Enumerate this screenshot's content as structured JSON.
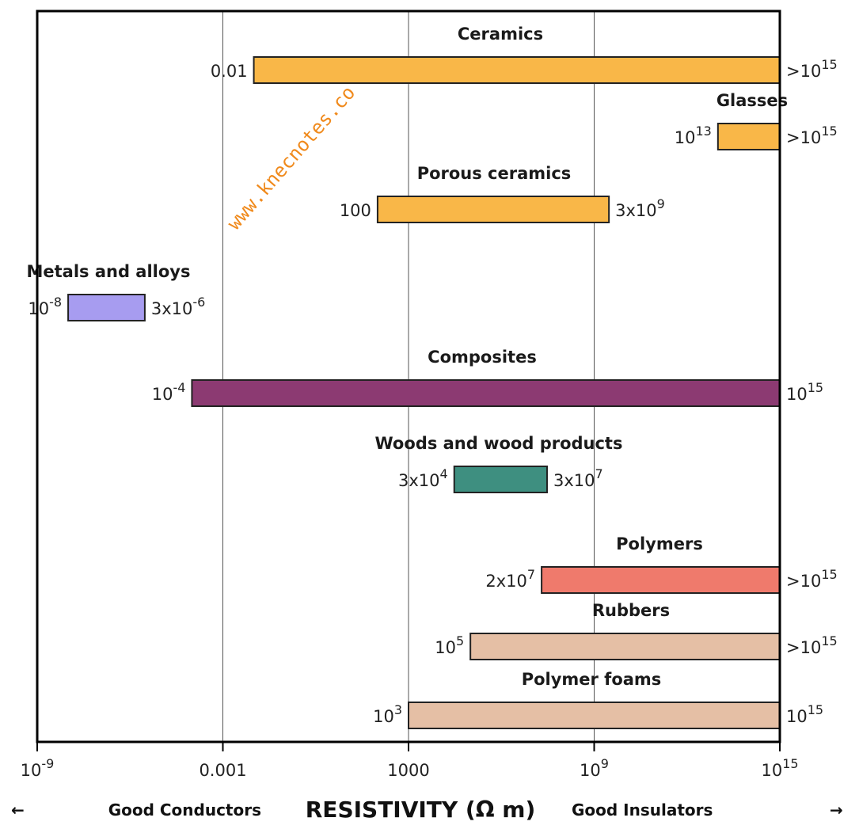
{
  "chart_data": {
    "type": "bar",
    "orientation": "horizontal-range",
    "x_scale": "log",
    "x_unit": "Ω m",
    "xlim": [
      1e-09,
      1000000000000000.0
    ],
    "xticks": [
      {
        "value": 1e-09,
        "base": "10",
        "exp": "-9"
      },
      {
        "value": 0.001,
        "base": "0.001",
        "exp": ""
      },
      {
        "value": 1000,
        "base": "1000",
        "exp": ""
      },
      {
        "value": 1000000000.0,
        "base": "10",
        "exp": "9"
      },
      {
        "value": 1000000000000000.0,
        "base": "10",
        "exp": "15"
      }
    ],
    "grid": "vertical",
    "xlabel": {
      "left": "Good Conductors",
      "main": "RESISTIVITY (Ω m)",
      "right": "Good Insulators"
    },
    "ranges": [
      {
        "name": "Ceramics",
        "low": 0.01,
        "high": 1000000000000000.0,
        "color": "#f9b748",
        "low_label": {
          "base": "0.01",
          "exp": ""
        },
        "high_label": {
          "base": ">10",
          "exp": "15"
        }
      },
      {
        "name": "Glasses",
        "low": 10000000000000.0,
        "high": 1000000000000000.0,
        "color": "#f9b748",
        "low_label": {
          "base": "10",
          "exp": "13"
        },
        "high_label": {
          "base": ">10",
          "exp": "15"
        }
      },
      {
        "name": "Porous ceramics",
        "low": 100,
        "high": 3000000000.0,
        "color": "#f9b748",
        "low_label": {
          "base": "100",
          "exp": ""
        },
        "high_label": {
          "base": "3x10",
          "exp": "9"
        }
      },
      {
        "name": "Metals and alloys",
        "low": 1e-08,
        "high": 3e-06,
        "color": "#a79cf0",
        "low_label": {
          "base": "10",
          "exp": "-8"
        },
        "high_label": {
          "base": "3x10",
          "exp": "-6"
        }
      },
      {
        "name": "Composites",
        "low": 0.0001,
        "high": 1000000000000000.0,
        "color": "#8c3a72",
        "low_label": {
          "base": "10",
          "exp": "-4"
        },
        "high_label": {
          "base": "10",
          "exp": "15"
        }
      },
      {
        "name": "Woods and wood products",
        "low": 30000.0,
        "high": 30000000.0,
        "color": "#3e8f80",
        "low_label": {
          "base": "3x10",
          "exp": "4"
        },
        "high_label": {
          "base": "3x10",
          "exp": "7"
        }
      },
      {
        "name": "Polymers",
        "low": 20000000.0,
        "high": 1000000000000000.0,
        "color": "#ef7a6c",
        "low_label": {
          "base": "2x10",
          "exp": "7"
        },
        "high_label": {
          "base": ">10",
          "exp": "15"
        }
      },
      {
        "name": "Rubbers",
        "low": 100000.0,
        "high": 1000000000000000.0,
        "color": "#e5bfa5",
        "low_label": {
          "base": "10",
          "exp": "5"
        },
        "high_label": {
          "base": ">10",
          "exp": "15"
        }
      },
      {
        "name": "Polymer foams",
        "low": 1000,
        "high": 1000000000000000.0,
        "color": "#e5bfa5",
        "low_label": {
          "base": "10",
          "exp": "3"
        },
        "high_label": {
          "base": "10",
          "exp": "15"
        }
      }
    ]
  },
  "watermark": "www.knecnotes.co"
}
